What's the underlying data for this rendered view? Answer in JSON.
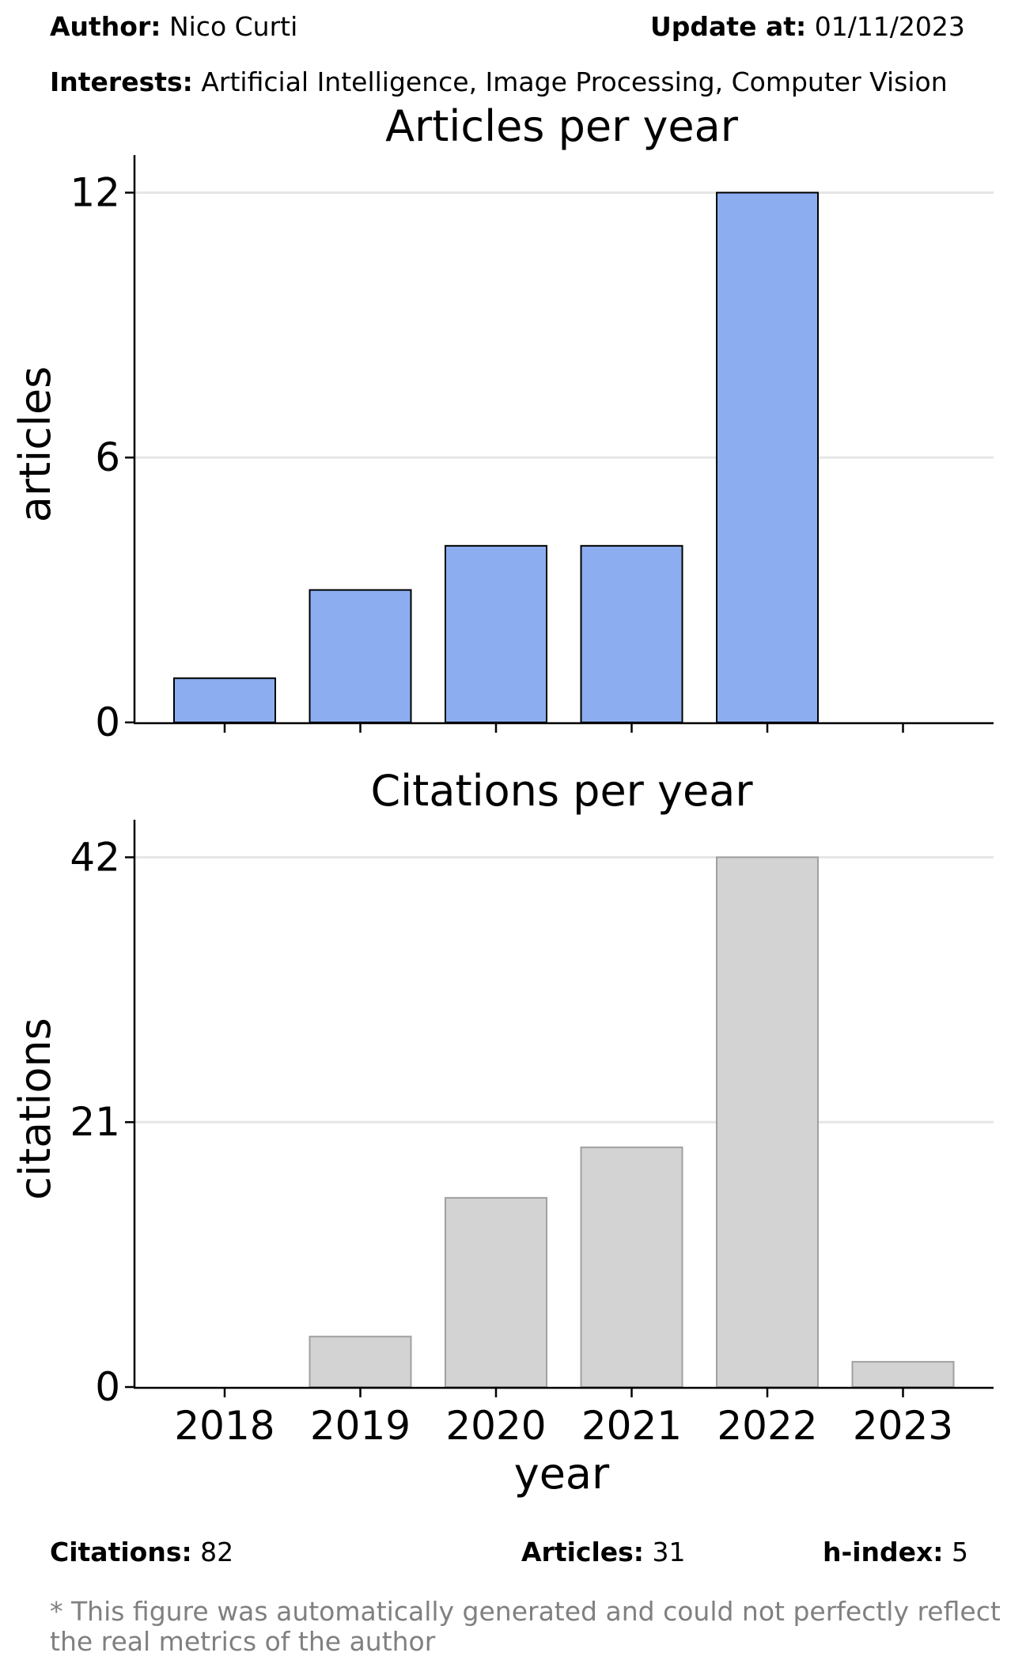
{
  "header": {
    "author_label": "Author:",
    "author": "Nico Curti",
    "update_label": "Update at:",
    "update": "01/11/2023",
    "interests_label": "Interests:",
    "interests": "Artificial Intelligence, Image Processing, Computer Vision"
  },
  "footer": {
    "citations_label": "Citations:",
    "citations": "82",
    "articles_label": "Articles:",
    "articles": "31",
    "hindex_label": "h-index:",
    "hindex": "5",
    "note_line1": "* This figure was automatically generated and could not perfectly reflect",
    "note_line2": "the real metrics of the author"
  },
  "colors": {
    "articles_bar": "#8caef0",
    "articles_edge": "#000000",
    "citations_bar": "#d3d3d3",
    "citations_edge": "#a0a0a0",
    "grid": "#e6e6e6",
    "note": "#808080"
  },
  "chart_data": [
    {
      "type": "bar",
      "title": "Articles per year",
      "ylabel": "articles",
      "xlabel": "",
      "categories": [
        "2018",
        "2019",
        "2020",
        "2021",
        "2022",
        "2023"
      ],
      "values": [
        1,
        3,
        4,
        4,
        12,
        0
      ],
      "yticks": [
        0,
        6,
        12
      ],
      "ylim": [
        0,
        12.6
      ],
      "grid": "horizontal",
      "show_xticklabels": false
    },
    {
      "type": "bar",
      "title": "Citations per year",
      "ylabel": "citations",
      "xlabel": "year",
      "categories": [
        "2018",
        "2019",
        "2020",
        "2021",
        "2022",
        "2023"
      ],
      "values": [
        0,
        4,
        15,
        19,
        42,
        2
      ],
      "yticks": [
        0,
        21,
        42
      ],
      "ylim": [
        0,
        44.1
      ],
      "grid": "horizontal",
      "show_xticklabels": true
    }
  ]
}
